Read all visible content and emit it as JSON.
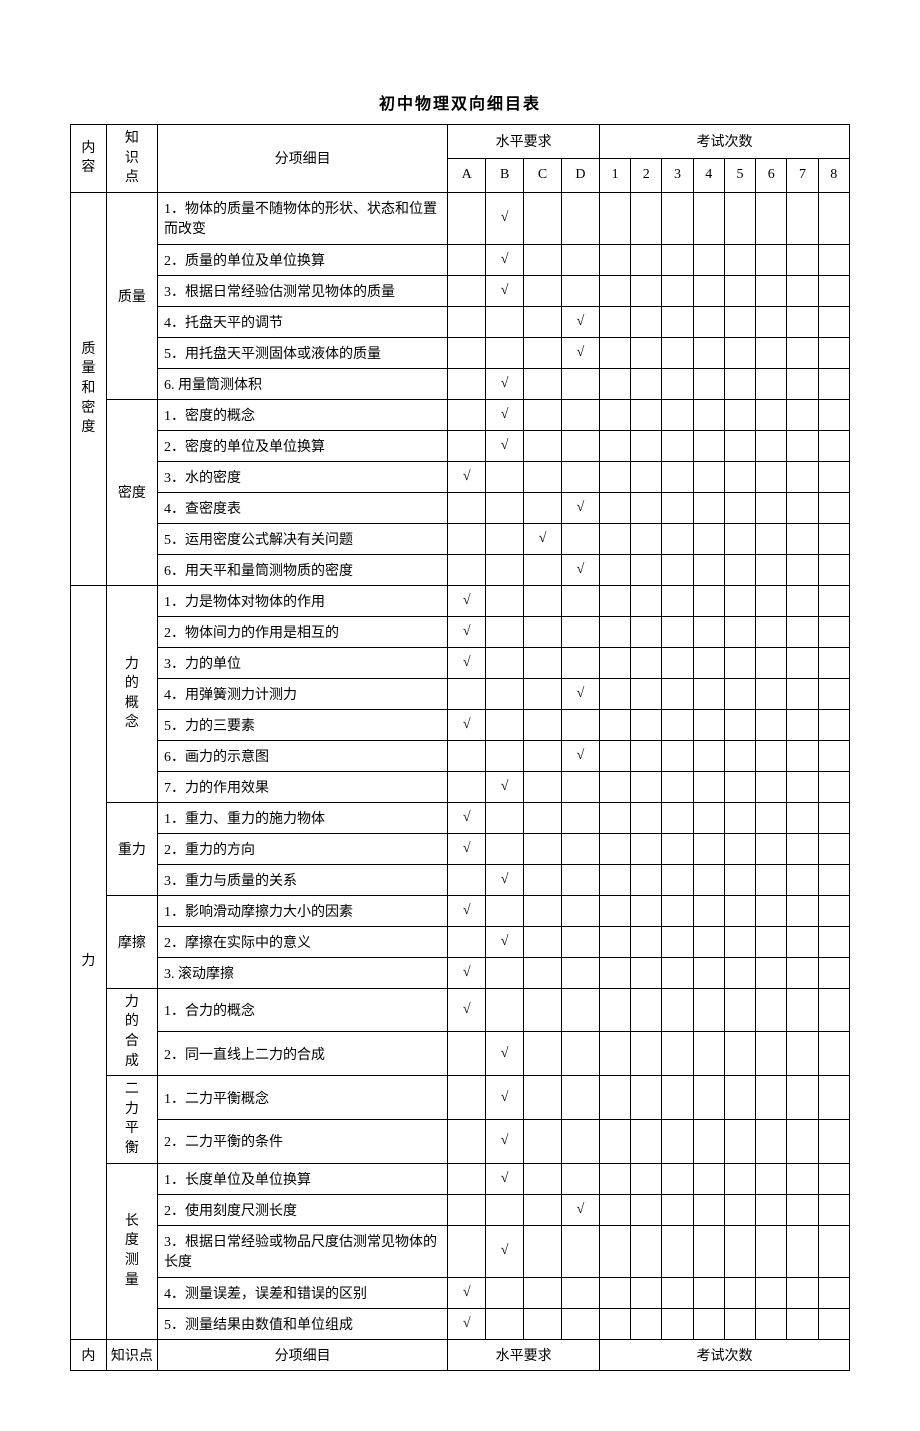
{
  "title": "初中物理双向细目表",
  "headers": {
    "category": "内容",
    "knowledge": "知识点",
    "detail": "分项细目",
    "level": "水平要求",
    "count": "考试次数",
    "level_cols": [
      "A",
      "B",
      "C",
      "D"
    ],
    "count_cols": [
      "1",
      "2",
      "3",
      "4",
      "5",
      "6",
      "7",
      "8"
    ]
  },
  "check": "√",
  "sections": [
    {
      "category": "质量和密度",
      "groups": [
        {
          "kp": "质量",
          "rows": [
            {
              "detail": "1．物体的质量不随物体的形状、状态和位置而改变",
              "level": 1,
              "tall": true
            },
            {
              "detail": "2．质量的单位及单位换算",
              "level": 1
            },
            {
              "detail": "3．根据日常经验估测常见物体的质量",
              "level": 1
            },
            {
              "detail": "4．托盘天平的调节",
              "level": 3
            },
            {
              "detail": "5．用托盘天平测固体或液体的质量",
              "level": 3
            },
            {
              "detail": "6. 用量筒测体积",
              "level": 1
            }
          ]
        },
        {
          "kp": "密度",
          "rows": [
            {
              "detail": "1．密度的概念",
              "level": 1
            },
            {
              "detail": "2．密度的单位及单位换算",
              "level": 1
            },
            {
              "detail": "3．水的密度",
              "level": 0
            },
            {
              "detail": "4．查密度表",
              "level": 3
            },
            {
              "detail": "5．运用密度公式解决有关问题",
              "level": 2
            },
            {
              "detail": "6．用天平和量筒测物质的密度",
              "level": 3
            }
          ]
        }
      ]
    },
    {
      "category": "力",
      "groups": [
        {
          "kp": "力的概念",
          "rows": [
            {
              "detail": "1．力是物体对物体的作用",
              "level": 0
            },
            {
              "detail": "2．物体间力的作用是相互的",
              "level": 0
            },
            {
              "detail": "3．力的单位",
              "level": 0
            },
            {
              "detail": "4．用弹簧测力计测力",
              "level": 3
            },
            {
              "detail": "5．力的三要素",
              "level": 0
            },
            {
              "detail": "6．画力的示意图",
              "level": 3
            },
            {
              "detail": "7．力的作用效果",
              "level": 1
            }
          ]
        },
        {
          "kp": "重力",
          "rows": [
            {
              "detail": "1．重力、重力的施力物体",
              "level": 0
            },
            {
              "detail": "2．重力的方向",
              "level": 0
            },
            {
              "detail": "3．重力与质量的关系",
              "level": 1
            }
          ]
        },
        {
          "kp": "摩擦",
          "rows": [
            {
              "detail": "1．影响滑动摩擦力大小的因素",
              "level": 0
            },
            {
              "detail": "2．摩擦在实际中的意义",
              "level": 1
            },
            {
              "detail": "3. 滚动摩擦",
              "level": 0
            }
          ]
        },
        {
          "kp": "力的合成",
          "rows": [
            {
              "detail": "1．合力的概念",
              "level": 0
            },
            {
              "detail": "2．同一直线上二力的合成",
              "level": 1
            }
          ]
        },
        {
          "kp": "二力平衡",
          "rows": [
            {
              "detail": "1．二力平衡概念",
              "level": 1
            },
            {
              "detail": "2．二力平衡的条件",
              "level": 1
            }
          ]
        },
        {
          "kp": "长度测量",
          "rows": [
            {
              "detail": "1．长度单位及单位换算",
              "level": 1
            },
            {
              "detail": "2．使用刻度尺测长度",
              "level": 3
            },
            {
              "detail": "3．根据日常经验或物品尺度估测常见物体的长度",
              "level": 1,
              "tall": true
            },
            {
              "detail": "4．测量误差，误差和错误的区别",
              "level": 0
            },
            {
              "detail": "5．测量结果由数值和单位组成",
              "level": 0
            }
          ]
        }
      ]
    }
  ]
}
